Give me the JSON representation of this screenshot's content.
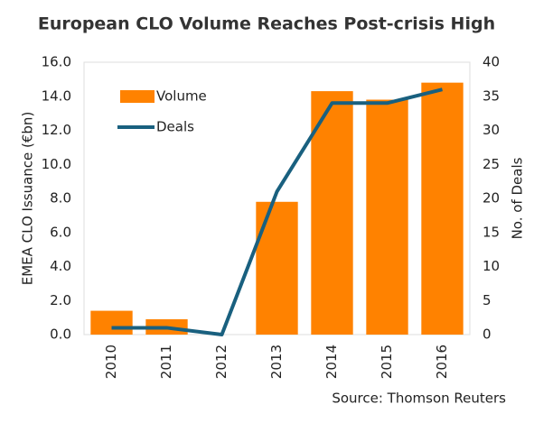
{
  "chart_data": {
    "type": "bar",
    "title": "European CLO Volume Reaches Post-crisis High",
    "y_label": "EMEA CLO Issuance (€bn)",
    "y2_label": "No. of Deals",
    "source": "Source: Thomson Reuters",
    "categories": [
      "2010",
      "2011",
      "2012",
      "2013",
      "2014",
      "2015",
      "2016"
    ],
    "series": [
      {
        "name": "Volume",
        "type": "bar",
        "color": "#ff8200",
        "values": [
          1.4,
          0.9,
          0,
          7.8,
          14.3,
          13.8,
          14.8
        ]
      },
      {
        "name": "Deals",
        "type": "line",
        "axis": "y2",
        "color": "#19607f",
        "values": [
          1,
          1,
          0,
          21,
          34,
          34,
          36
        ]
      }
    ],
    "ylim": [
      0,
      16
    ],
    "yticks": [
      {
        "value": 0,
        "label": "0.0"
      },
      {
        "value": 2,
        "label": "2.0"
      },
      {
        "value": 4,
        "label": "4.0"
      },
      {
        "value": 6,
        "label": "6.0"
      },
      {
        "value": 8,
        "label": "8.0"
      },
      {
        "value": 10,
        "label": "10.0"
      },
      {
        "value": 12,
        "label": "12.0"
      },
      {
        "value": 14,
        "label": "14.0"
      },
      {
        "value": 16,
        "label": "16.0"
      }
    ],
    "y2lim": [
      0,
      40
    ],
    "y2ticks": [
      0,
      5,
      10,
      15,
      20,
      25,
      30,
      35,
      40
    ],
    "grid": false,
    "legend": "upper left"
  }
}
